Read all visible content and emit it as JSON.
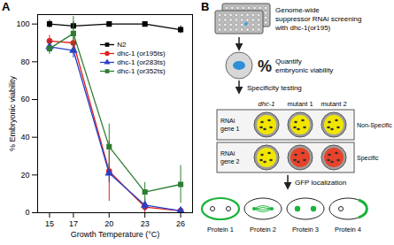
{
  "chart_data": {
    "type": "line",
    "panel_label": "A",
    "xlabel": "Growth Temperature (°C)",
    "ylabel": "% Embryonic viability",
    "x": [
      15,
      17,
      20,
      23,
      26
    ],
    "xlim": [
      14,
      27
    ],
    "xticks": [
      15,
      17,
      20,
      23,
      26
    ],
    "ylim": [
      0,
      105
    ],
    "yticks": [
      0,
      20,
      40,
      60,
      80,
      100
    ],
    "grid": false,
    "legend": "right",
    "series": [
      {
        "name": "N2",
        "color": "#000000",
        "marker": "square",
        "values": [
          100,
          99,
          100,
          100,
          97
        ],
        "errors": [
          2,
          2,
          1,
          1,
          2
        ]
      },
      {
        "name": "dhc-1 (or195ts)",
        "color": "#e0201b",
        "marker": "circle",
        "values": [
          91,
          90,
          22,
          3,
          1
        ],
        "errors": [
          3,
          3,
          16,
          3,
          1
        ]
      },
      {
        "name": "dhc-1 (or283ts)",
        "color": "#2a3fc7",
        "marker": "triangle",
        "values": [
          88,
          86,
          21,
          4,
          1
        ],
        "errors": [
          3,
          4,
          5,
          3,
          1
        ]
      },
      {
        "name": "dhc-1 (or352ts)",
        "color": "#2e7d32",
        "marker": "square",
        "values": [
          87,
          95,
          35,
          11,
          15
        ],
        "errors": [
          3,
          9,
          12,
          5,
          10
        ]
      }
    ]
  },
  "diagram": {
    "panel_label": "B",
    "screen": [
      "Genome-wide",
      "suppressor RNAi screening",
      "with dhc-1(or195)"
    ],
    "quantify": {
      "symbol": "%",
      "text": [
        "Quantify",
        "embryonic viability"
      ]
    },
    "specificity": "Specificity testing",
    "columns": [
      "dhc-1",
      "mutant 1",
      "mutant 2"
    ],
    "rows": [
      {
        "label": [
          "RNAi",
          "gene 1"
        ],
        "result": "Non-Specific",
        "colors": [
          "#f2e600",
          "#f2e600",
          "#f2e600"
        ]
      },
      {
        "label": [
          "RNAi",
          "gene 2"
        ],
        "result": "Specific",
        "colors": [
          "#f2e600",
          "#e8432a",
          "#e8432a"
        ]
      }
    ],
    "final_step": "GFP localization",
    "proteins": [
      "Protein 1",
      "Protein 2",
      "Protein 3",
      "Protein 4"
    ]
  }
}
